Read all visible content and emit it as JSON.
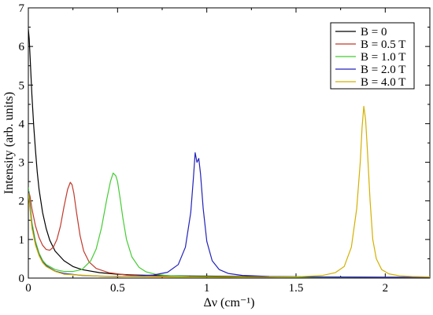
{
  "chart_data": {
    "type": "line",
    "xlabel": "Δν (cm⁻¹)",
    "ylabel": "Intensity (arb. units)",
    "xlim": [
      0,
      2.25
    ],
    "ylim": [
      0,
      7
    ],
    "x_ticks": [
      {
        "value": 0,
        "label": "0"
      },
      {
        "value": 0.5,
        "label": "0.5"
      },
      {
        "value": 1,
        "label": "1"
      },
      {
        "value": 1.5,
        "label": "1.5"
      },
      {
        "value": 2,
        "label": "2"
      }
    ],
    "y_ticks": [
      {
        "value": 0,
        "label": "0"
      },
      {
        "value": 1,
        "label": "1"
      },
      {
        "value": 2,
        "label": "2"
      },
      {
        "value": 3,
        "label": "3"
      },
      {
        "value": 4,
        "label": "4"
      },
      {
        "value": 5,
        "label": "5"
      },
      {
        "value": 6,
        "label": "6"
      },
      {
        "value": 7,
        "label": "7"
      }
    ],
    "grid": false,
    "legend_position": "top-right",
    "series": [
      {
        "name": "B = 0",
        "color": "#000000",
        "x": [
          0,
          0.005,
          0.01,
          0.02,
          0.03,
          0.04,
          0.05,
          0.06,
          0.08,
          0.1,
          0.12,
          0.15,
          0.2,
          0.25,
          0.3,
          0.4,
          0.5,
          0.6,
          0.8,
          1.0,
          1.2,
          1.5,
          2.0,
          2.25
        ],
        "y": [
          6.45,
          6.2,
          5.7,
          4.75,
          3.95,
          3.3,
          2.75,
          2.3,
          1.7,
          1.28,
          0.98,
          0.7,
          0.45,
          0.3,
          0.22,
          0.14,
          0.1,
          0.08,
          0.06,
          0.05,
          0.04,
          0.03,
          0.02,
          0.02
        ]
      },
      {
        "name": "B = 0.5 T",
        "color": "#c0392b",
        "x": [
          0,
          0.01,
          0.02,
          0.04,
          0.06,
          0.08,
          0.1,
          0.12,
          0.14,
          0.16,
          0.18,
          0.2,
          0.22,
          0.235,
          0.245,
          0.255,
          0.27,
          0.29,
          0.31,
          0.34,
          0.38,
          0.45,
          0.55,
          0.7,
          0.9,
          1.2,
          1.6,
          2.0,
          2.25
        ],
        "y": [
          2.3,
          2.1,
          1.8,
          1.35,
          1.05,
          0.85,
          0.74,
          0.72,
          0.8,
          1.0,
          1.35,
          1.85,
          2.3,
          2.48,
          2.42,
          2.2,
          1.7,
          1.1,
          0.7,
          0.42,
          0.25,
          0.14,
          0.08,
          0.05,
          0.04,
          0.03,
          0.02,
          0.02,
          0.02
        ]
      },
      {
        "name": "B = 1.0 T",
        "color": "#44cc33",
        "x": [
          0,
          0.01,
          0.02,
          0.04,
          0.06,
          0.08,
          0.1,
          0.15,
          0.2,
          0.25,
          0.3,
          0.35,
          0.38,
          0.41,
          0.44,
          0.46,
          0.475,
          0.49,
          0.5,
          0.515,
          0.53,
          0.55,
          0.58,
          0.62,
          0.66,
          0.72,
          0.8,
          0.9,
          1.1,
          1.4,
          1.8,
          2.25
        ],
        "y": [
          2.35,
          1.9,
          1.45,
          0.95,
          0.65,
          0.46,
          0.35,
          0.22,
          0.17,
          0.17,
          0.22,
          0.45,
          0.75,
          1.3,
          2.05,
          2.5,
          2.72,
          2.65,
          2.5,
          2.05,
          1.55,
          1.0,
          0.55,
          0.28,
          0.16,
          0.09,
          0.06,
          0.04,
          0.03,
          0.02,
          0.02,
          0.02
        ]
      },
      {
        "name": "B = 2.0 T",
        "color": "#2222bb",
        "x": [
          0,
          0.01,
          0.02,
          0.04,
          0.06,
          0.08,
          0.1,
          0.15,
          0.2,
          0.3,
          0.4,
          0.5,
          0.6,
          0.7,
          0.78,
          0.84,
          0.88,
          0.91,
          0.925,
          0.935,
          0.945,
          0.955,
          0.965,
          0.98,
          1.0,
          1.03,
          1.07,
          1.12,
          1.2,
          1.35,
          1.6,
          2.0,
          2.25
        ],
        "y": [
          2.25,
          1.8,
          1.35,
          0.88,
          0.6,
          0.42,
          0.32,
          0.18,
          0.12,
          0.07,
          0.05,
          0.04,
          0.05,
          0.08,
          0.15,
          0.35,
          0.8,
          1.7,
          2.6,
          3.25,
          3.0,
          3.1,
          2.7,
          1.8,
          0.95,
          0.45,
          0.22,
          0.12,
          0.07,
          0.04,
          0.03,
          0.02,
          0.02
        ]
      },
      {
        "name": "B = 4.0 T",
        "color": "#d4b000",
        "x": [
          0,
          0.01,
          0.02,
          0.04,
          0.06,
          0.08,
          0.1,
          0.15,
          0.2,
          0.4,
          0.8,
          1.2,
          1.5,
          1.65,
          1.72,
          1.77,
          1.81,
          1.84,
          1.86,
          1.87,
          1.88,
          1.89,
          1.9,
          1.915,
          1.93,
          1.95,
          1.98,
          2.02,
          2.08,
          2.15,
          2.25
        ],
        "y": [
          2.2,
          1.75,
          1.3,
          0.85,
          0.58,
          0.4,
          0.3,
          0.17,
          0.1,
          0.05,
          0.03,
          0.02,
          0.03,
          0.07,
          0.14,
          0.3,
          0.8,
          1.8,
          3.0,
          3.9,
          4.45,
          4.1,
          3.3,
          2.0,
          1.0,
          0.5,
          0.22,
          0.11,
          0.06,
          0.04,
          0.03
        ]
      }
    ]
  }
}
